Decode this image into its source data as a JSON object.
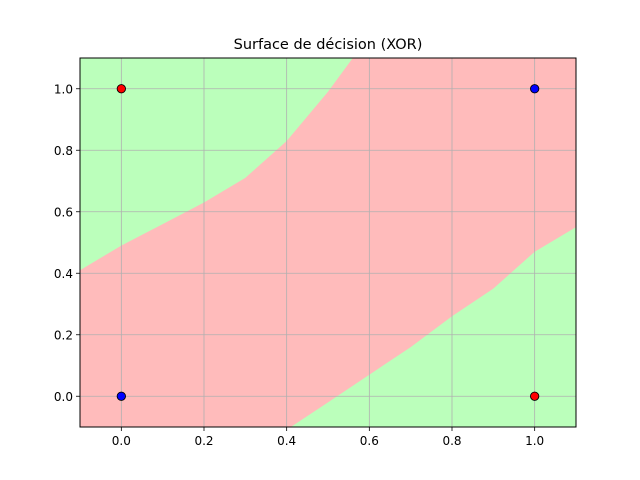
{
  "chart_data": {
    "type": "scatter",
    "title": "Surface de décision (XOR)",
    "xlabel": "",
    "ylabel": "",
    "xlim": [
      -0.1,
      1.1
    ],
    "ylim": [
      -0.1,
      1.1
    ],
    "grid": true,
    "x_ticks": [
      0.0,
      0.2,
      0.4,
      0.6,
      0.8,
      1.0
    ],
    "x_tick_labels": [
      "0.0",
      "0.2",
      "0.4",
      "0.6",
      "0.8",
      "1.0"
    ],
    "y_ticks": [
      0.0,
      0.2,
      0.4,
      0.6,
      0.8,
      1.0
    ],
    "y_tick_labels": [
      "0.0",
      "0.2",
      "0.4",
      "0.6",
      "0.8",
      "1.0"
    ],
    "decision_regions": [
      {
        "class": 0,
        "color": "#bbffbb",
        "label": ""
      },
      {
        "class": 1,
        "color": "#ffbbbb",
        "label": ""
      }
    ],
    "decision_boundaries": [
      {
        "name": "upper",
        "points": [
          [
            -0.1,
            0.41
          ],
          [
            0.0,
            0.49
          ],
          [
            0.1,
            0.56
          ],
          [
            0.2,
            0.63
          ],
          [
            0.3,
            0.71
          ],
          [
            0.4,
            0.83
          ],
          [
            0.5,
            0.99
          ],
          [
            0.56,
            1.1
          ]
        ]
      },
      {
        "name": "lower",
        "points": [
          [
            0.41,
            -0.1
          ],
          [
            0.5,
            -0.02
          ],
          [
            0.6,
            0.07
          ],
          [
            0.7,
            0.16
          ],
          [
            0.8,
            0.26
          ],
          [
            0.9,
            0.35
          ],
          [
            1.0,
            0.47
          ],
          [
            1.1,
            0.55
          ]
        ]
      }
    ],
    "points": [
      {
        "x": 0,
        "y": 0,
        "label": 0,
        "color": "#0000ff"
      },
      {
        "x": 0,
        "y": 1,
        "label": 1,
        "color": "#ff0000"
      },
      {
        "x": 1,
        "y": 0,
        "label": 1,
        "color": "#ff0000"
      },
      {
        "x": 1,
        "y": 1,
        "label": 0,
        "color": "#0000ff"
      }
    ]
  }
}
